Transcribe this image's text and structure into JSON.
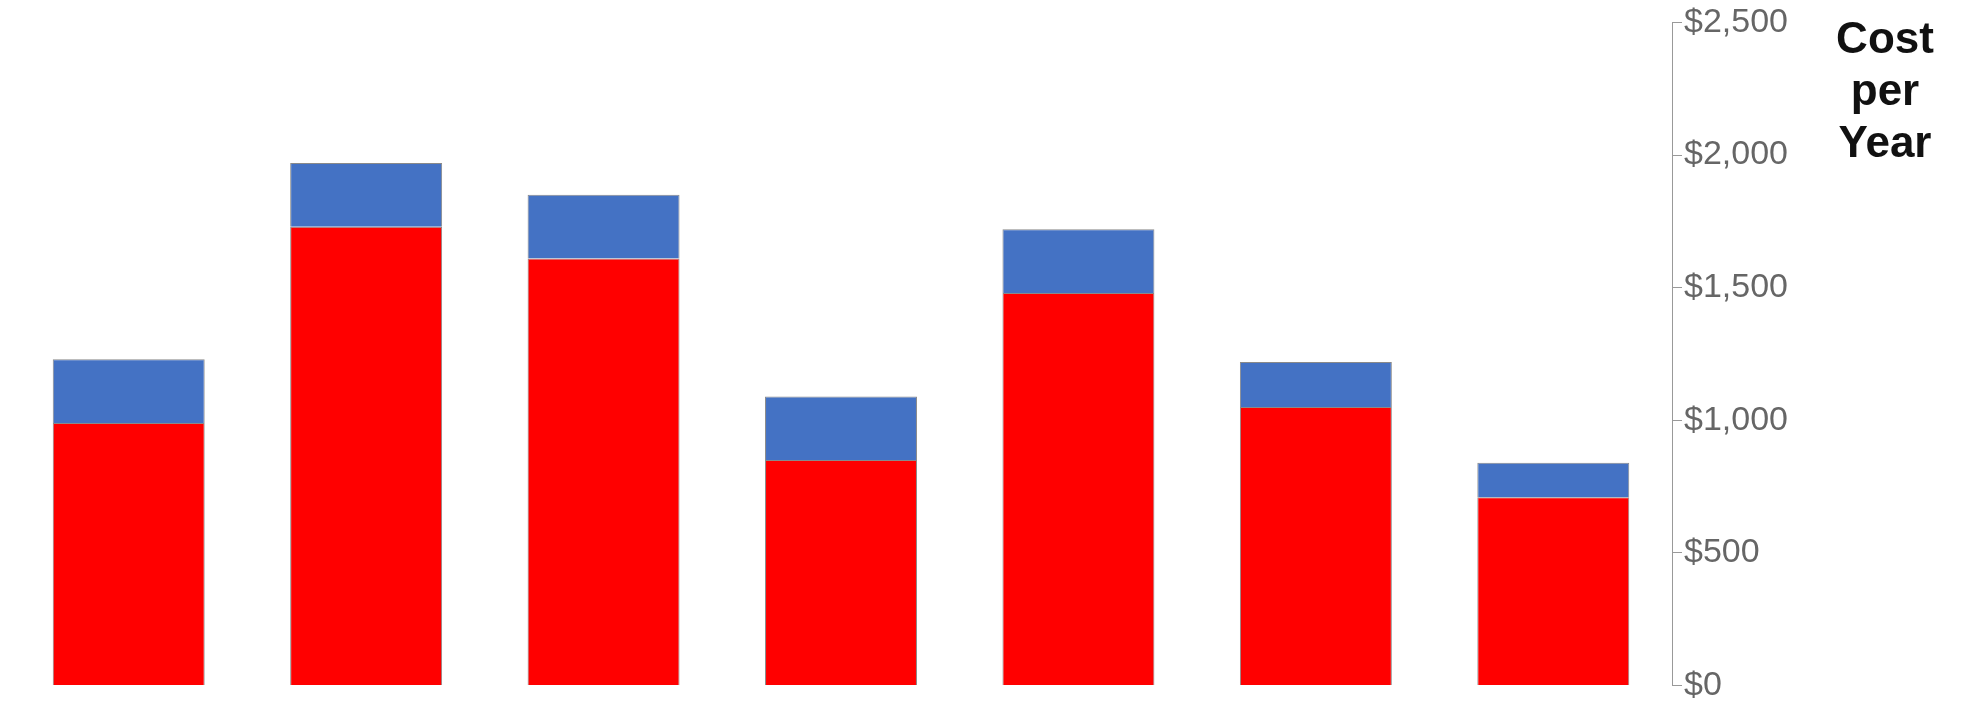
{
  "chart_data": {
    "type": "bar",
    "ylabel": "Cost per Year",
    "stacked": true,
    "categories": [
      null,
      null,
      null,
      null,
      null,
      null,
      null
    ],
    "series": [
      {
        "color": "#ff0000",
        "values": [
          990,
          1730,
          1610,
          850,
          1480,
          1050,
          710
        ]
      },
      {
        "color": "#4472c4",
        "values": [
          240,
          240,
          240,
          240,
          240,
          170,
          130
        ]
      }
    ],
    "ylim": [
      0,
      2500
    ],
    "yticks": [
      {
        "value": 0,
        "label": "$0"
      },
      {
        "value": 500,
        "label": "$500"
      },
      {
        "value": 1000,
        "label": "$1,000"
      },
      {
        "value": 1500,
        "label": "$1,500"
      },
      {
        "value": 2000,
        "label": "$2,000"
      },
      {
        "value": 2500,
        "label": "$2,500"
      }
    ],
    "grid": false,
    "legend": false,
    "tick_labels": "y"
  }
}
